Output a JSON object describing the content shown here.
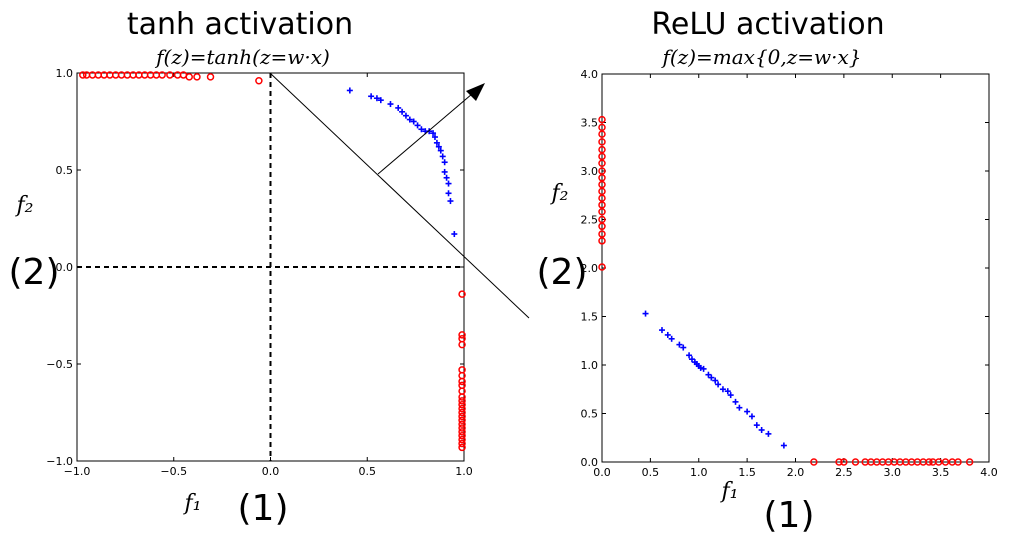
{
  "charts": {
    "tanh": {
      "title": "tanh activation",
      "formula": "f(z)=tanh(z=w·x)",
      "xlabel": "f₁",
      "ylabel": "f₂",
      "x_marker": "(1)",
      "y_marker": "(2)"
    },
    "relu": {
      "title": "ReLU activation",
      "formula": "f(z)=max{0,z=w·x}",
      "xlabel": "f₁",
      "ylabel": "f₂",
      "x_marker": "(1)",
      "y_marker": "(2)"
    }
  },
  "colors": {
    "positive_class": "#0000ff",
    "negative_class": "#ff0000",
    "axes": "#000000"
  },
  "chart_data": [
    {
      "type": "scatter",
      "title": "tanh activation",
      "subtitle": "f(z)=tanh(z=w·x)",
      "xlabel": "f₁",
      "ylabel": "f₂",
      "xlim": [
        -1.0,
        1.0
      ],
      "ylim": [
        -1.0,
        1.0
      ],
      "xticks": [
        "−1.0",
        "−0.5",
        "0.0",
        "0.5",
        "1.0"
      ],
      "yticks": [
        "−1.0",
        "−0.5",
        "0.0",
        "0.5",
        "1.0"
      ],
      "grid": false,
      "reference_lines": {
        "x": 0,
        "y": 0,
        "style": "dashed"
      },
      "series": [
        {
          "marker": "plus",
          "color": "#0000ff",
          "points": [
            [
              0.41,
              0.91
            ],
            [
              0.52,
              0.88
            ],
            [
              0.55,
              0.87
            ],
            [
              0.57,
              0.86
            ],
            [
              0.62,
              0.84
            ],
            [
              0.66,
              0.82
            ],
            [
              0.68,
              0.8
            ],
            [
              0.7,
              0.78
            ],
            [
              0.72,
              0.76
            ],
            [
              0.74,
              0.75
            ],
            [
              0.76,
              0.73
            ],
            [
              0.78,
              0.71
            ],
            [
              0.8,
              0.7
            ],
            [
              0.82,
              0.7
            ],
            [
              0.84,
              0.69
            ],
            [
              0.85,
              0.67
            ],
            [
              0.86,
              0.64
            ],
            [
              0.87,
              0.62
            ],
            [
              0.88,
              0.6
            ],
            [
              0.89,
              0.57
            ],
            [
              0.9,
              0.54
            ],
            [
              0.9,
              0.49
            ],
            [
              0.91,
              0.46
            ],
            [
              0.92,
              0.43
            ],
            [
              0.92,
              0.38
            ],
            [
              0.93,
              0.34
            ],
            [
              0.95,
              0.17
            ]
          ]
        },
        {
          "marker": "circle",
          "color": "#ff0000",
          "points": [
            [
              -0.97,
              0.99
            ],
            [
              -0.95,
              0.99
            ],
            [
              -0.92,
              0.99
            ],
            [
              -0.89,
              0.99
            ],
            [
              -0.86,
              0.99
            ],
            [
              -0.83,
              0.99
            ],
            [
              -0.8,
              0.99
            ],
            [
              -0.77,
              0.99
            ],
            [
              -0.74,
              0.99
            ],
            [
              -0.71,
              0.99
            ],
            [
              -0.68,
              0.99
            ],
            [
              -0.65,
              0.99
            ],
            [
              -0.62,
              0.99
            ],
            [
              -0.59,
              0.99
            ],
            [
              -0.56,
              0.99
            ],
            [
              -0.52,
              0.99
            ],
            [
              -0.48,
              0.99
            ],
            [
              -0.45,
              0.99
            ],
            [
              -0.42,
              0.98
            ],
            [
              -0.38,
              0.98
            ],
            [
              -0.31,
              0.98
            ],
            [
              -0.06,
              0.96
            ],
            [
              0.99,
              -0.14
            ],
            [
              0.99,
              -0.35
            ],
            [
              0.99,
              -0.37
            ],
            [
              0.99,
              -0.4
            ],
            [
              0.99,
              -0.53
            ],
            [
              0.99,
              -0.56
            ],
            [
              0.99,
              -0.59
            ],
            [
              0.99,
              -0.61
            ],
            [
              0.99,
              -0.64
            ],
            [
              0.99,
              -0.67
            ],
            [
              0.99,
              -0.69
            ],
            [
              0.99,
              -0.71
            ],
            [
              0.99,
              -0.73
            ],
            [
              0.99,
              -0.75
            ],
            [
              0.99,
              -0.77
            ],
            [
              0.99,
              -0.79
            ],
            [
              0.99,
              -0.81
            ],
            [
              0.99,
              -0.83
            ],
            [
              0.99,
              -0.85
            ],
            [
              0.99,
              -0.87
            ],
            [
              0.99,
              -0.89
            ],
            [
              0.99,
              -0.91
            ],
            [
              0.99,
              -0.93
            ]
          ]
        }
      ]
    },
    {
      "type": "scatter",
      "title": "ReLU activation",
      "subtitle": "f(z)=max{0,z=w·x}",
      "xlabel": "f₁",
      "ylabel": "f₂",
      "xlim": [
        0.0,
        4.0
      ],
      "ylim": [
        0.0,
        4.0
      ],
      "xticks": [
        "0.0",
        "0.5",
        "1.0",
        "1.5",
        "2.0",
        "2.5",
        "3.0",
        "3.5",
        "4.0"
      ],
      "yticks": [
        "0.0",
        "0.5",
        "1.0",
        "1.5",
        "2.0",
        "2.5",
        "3.0",
        "3.5",
        "4.0"
      ],
      "grid": false,
      "series": [
        {
          "marker": "plus",
          "color": "#0000ff",
          "points": [
            [
              0.45,
              1.53
            ],
            [
              0.62,
              1.36
            ],
            [
              0.68,
              1.31
            ],
            [
              0.72,
              1.27
            ],
            [
              0.8,
              1.21
            ],
            [
              0.84,
              1.18
            ],
            [
              0.9,
              1.1
            ],
            [
              0.93,
              1.06
            ],
            [
              0.96,
              1.03
            ],
            [
              0.98,
              1.01
            ],
            [
              1.0,
              0.99
            ],
            [
              1.02,
              0.97
            ],
            [
              1.05,
              0.96
            ],
            [
              1.1,
              0.9
            ],
            [
              1.13,
              0.87
            ],
            [
              1.17,
              0.84
            ],
            [
              1.2,
              0.8
            ],
            [
              1.25,
              0.75
            ],
            [
              1.3,
              0.73
            ],
            [
              1.33,
              0.69
            ],
            [
              1.38,
              0.62
            ],
            [
              1.42,
              0.56
            ],
            [
              1.5,
              0.52
            ],
            [
              1.55,
              0.47
            ],
            [
              1.6,
              0.38
            ],
            [
              1.65,
              0.33
            ],
            [
              1.72,
              0.29
            ],
            [
              1.88,
              0.17
            ]
          ]
        },
        {
          "marker": "circle",
          "color": "#ff0000",
          "points": [
            [
              0.0,
              3.53
            ],
            [
              0.0,
              3.45
            ],
            [
              0.0,
              3.38
            ],
            [
              0.0,
              3.3
            ],
            [
              0.0,
              3.22
            ],
            [
              0.0,
              3.15
            ],
            [
              0.0,
              3.08
            ],
            [
              0.0,
              3.0
            ],
            [
              0.0,
              2.93
            ],
            [
              0.0,
              2.86
            ],
            [
              0.0,
              2.79
            ],
            [
              0.0,
              2.72
            ],
            [
              0.0,
              2.65
            ],
            [
              0.0,
              2.58
            ],
            [
              0.0,
              2.5
            ],
            [
              0.0,
              2.43
            ],
            [
              0.0,
              2.35
            ],
            [
              0.0,
              2.28
            ],
            [
              0.0,
              2.01
            ],
            [
              2.19,
              0.0
            ],
            [
              2.45,
              0.0
            ],
            [
              2.5,
              0.0
            ],
            [
              2.62,
              0.0
            ],
            [
              2.72,
              0.0
            ],
            [
              2.78,
              0.0
            ],
            [
              2.84,
              0.0
            ],
            [
              2.9,
              0.0
            ],
            [
              2.96,
              0.0
            ],
            [
              3.02,
              0.0
            ],
            [
              3.08,
              0.0
            ],
            [
              3.14,
              0.0
            ],
            [
              3.2,
              0.0
            ],
            [
              3.26,
              0.0
            ],
            [
              3.32,
              0.0
            ],
            [
              3.38,
              0.0
            ],
            [
              3.42,
              0.0
            ],
            [
              3.48,
              0.0
            ],
            [
              3.55,
              0.0
            ],
            [
              3.62,
              0.0
            ],
            [
              3.68,
              0.0
            ],
            [
              3.8,
              0.0
            ]
          ]
        }
      ]
    }
  ]
}
